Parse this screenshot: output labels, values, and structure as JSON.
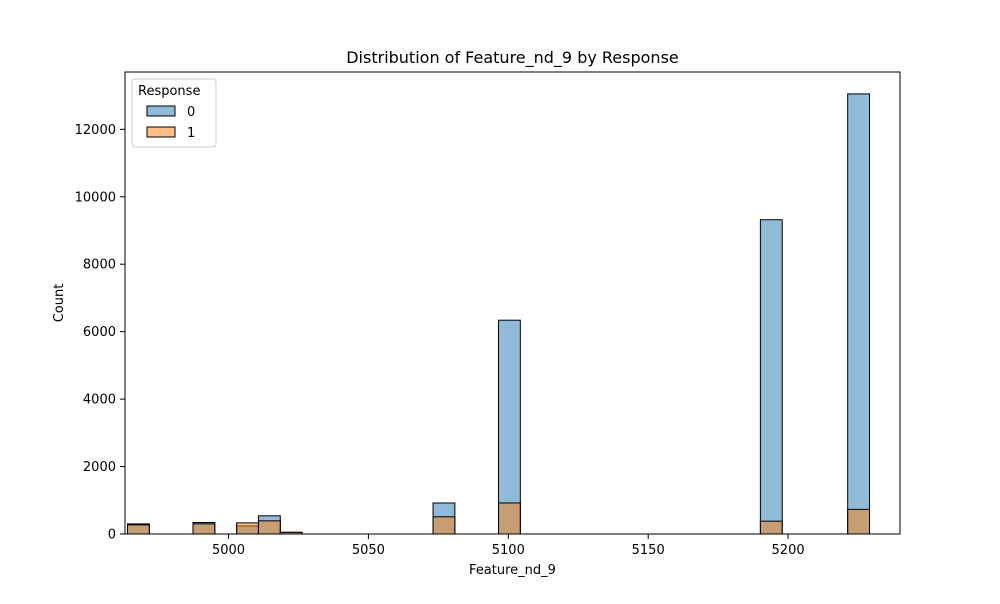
{
  "chart_data": {
    "type": "bar",
    "title": "Distribution of Feature_nd_9 by Response",
    "xlabel": "Feature_nd_9",
    "ylabel": "Count",
    "xlim": [
      4963,
      5240
    ],
    "ylim": [
      0,
      13700
    ],
    "x_ticks": [
      5000,
      5050,
      5100,
      5150,
      5200
    ],
    "y_ticks": [
      0,
      2000,
      4000,
      6000,
      8000,
      10000,
      12000
    ],
    "grid": false,
    "legend": {
      "title": "Response",
      "placement": "top-left"
    },
    "bin_width": 7.8,
    "series": [
      {
        "name": "0",
        "color": "#1f77b4",
        "bins": [
          {
            "x_start": 4963.9,
            "count": 300
          },
          {
            "x_start": 4987.3,
            "count": 340
          },
          {
            "x_start": 5002.9,
            "count": 240
          },
          {
            "x_start": 5010.7,
            "count": 540
          },
          {
            "x_start": 5018.5,
            "count": 50
          },
          {
            "x_start": 5073.1,
            "count": 920
          },
          {
            "x_start": 5096.5,
            "count": 6340
          },
          {
            "x_start": 5190.1,
            "count": 9320
          },
          {
            "x_start": 5221.3,
            "count": 13050
          }
        ]
      },
      {
        "name": "1",
        "color": "#ff7f0e",
        "bins": [
          {
            "x_start": 4963.9,
            "count": 270
          },
          {
            "x_start": 4987.3,
            "count": 300
          },
          {
            "x_start": 5002.9,
            "count": 330
          },
          {
            "x_start": 5010.7,
            "count": 390
          },
          {
            "x_start": 5018.5,
            "count": 50
          },
          {
            "x_start": 5073.1,
            "count": 510
          },
          {
            "x_start": 5096.5,
            "count": 920
          },
          {
            "x_start": 5190.1,
            "count": 380
          },
          {
            "x_start": 5221.3,
            "count": 730
          }
        ]
      }
    ]
  }
}
